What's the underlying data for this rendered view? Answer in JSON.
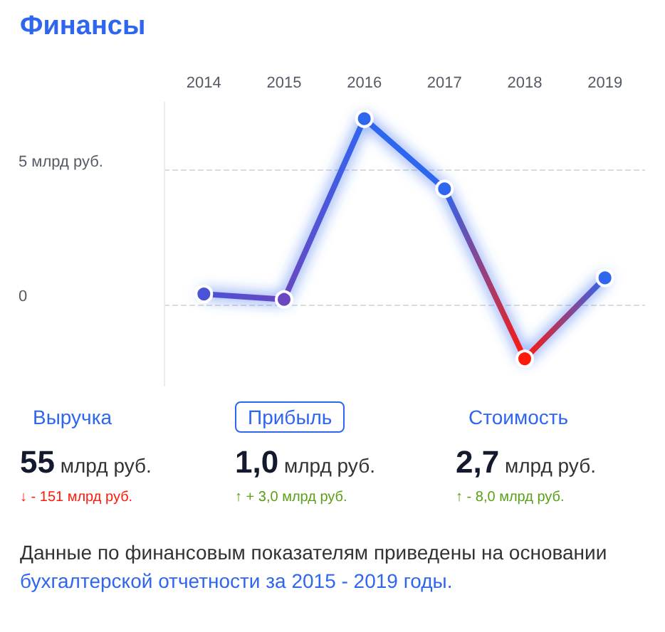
{
  "chart_data": {
    "type": "line",
    "title": "Финансы",
    "categories": [
      "2014",
      "2015",
      "2016",
      "2017",
      "2018",
      "2019"
    ],
    "series": [
      {
        "color": "#2f66f0",
        "colors": [
          "#4a52d8",
          "#6a48c0",
          "#2f66f0",
          "#2f66f0",
          "#ff1a0a",
          "#2f66f0"
        ],
        "values": [
          0.4,
          0.2,
          6.9,
          4.3,
          -2.0,
          1.0
        ]
      }
    ],
    "ylim": [
      -3,
      7.5
    ],
    "yticks": [
      0,
      {
        "value": 5,
        "label": "5 млрд руб."
      }
    ],
    "grid": "y",
    "marker": "circle",
    "line_style": "solid",
    "annotations": [
      "Выручка",
      "55",
      "млрд руб.",
      "↓ - 151 млрд руб.",
      "Прибыль",
      "1,0",
      "млрд руб.",
      "↑ + 3,0 млрд руб.",
      "Стоимость",
      "2,7",
      "млрд руб.",
      "↑ - 8,0 млрд руб.",
      "Данные по финансовым показателям приведены на основании ",
      "бухгалтерской отчетности за 2015 - 2019 годы."
    ]
  }
}
